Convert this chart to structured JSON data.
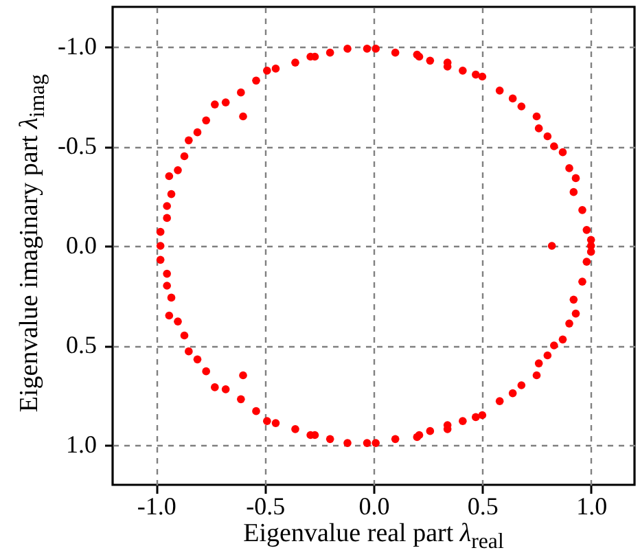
{
  "chart_data": {
    "type": "scatter",
    "xlabel": "Eigenvalue real part λ$_{real}$",
    "ylabel": "Eigenvalue imaginary part λ$_{imag}$",
    "x": [
      0.01,
      -0.03,
      -0.12,
      -0.2,
      -0.27,
      -0.29,
      -0.36,
      -0.45,
      -0.49,
      -0.54,
      -0.61,
      -0.6,
      -0.68,
      -0.73,
      -0.77,
      -0.81,
      -0.85,
      -0.87,
      -0.9,
      -0.94,
      -0.93,
      -0.95,
      -0.95,
      -0.98,
      0.1,
      0.2,
      0.21,
      0.26,
      0.34,
      0.34,
      0.41,
      0.47,
      0.5,
      0.58,
      0.64,
      0.68,
      0.75,
      0.76,
      0.8,
      0.83,
      0.87,
      0.9,
      0.93,
      0.92,
      0.96,
      0.98,
      1.0,
      -0.98,
      0.82,
      1.0,
      0.01,
      -0.03,
      -0.12,
      -0.2,
      -0.27,
      -0.29,
      -0.36,
      -0.45,
      -0.49,
      -0.54,
      -0.61,
      -0.6,
      -0.68,
      -0.73,
      -0.77,
      -0.81,
      -0.85,
      -0.87,
      -0.9,
      -0.94,
      -0.93,
      -0.95,
      -0.95,
      -0.98,
      0.1,
      0.2,
      0.21,
      0.26,
      0.34,
      0.34,
      0.41,
      0.47,
      0.5,
      0.58,
      0.64,
      0.68,
      0.75,
      0.76,
      0.8,
      0.83,
      0.87,
      0.9,
      0.93,
      0.92,
      0.96,
      0.98,
      1.0
    ],
    "series": [
      {
        "color": "#ff0000",
        "values": [
          -0.99,
          -0.99,
          -0.99,
          -0.97,
          -0.95,
          -0.95,
          -0.92,
          -0.89,
          -0.88,
          -0.83,
          -0.77,
          -0.65,
          -0.72,
          -0.71,
          -0.63,
          -0.57,
          -0.53,
          -0.45,
          -0.38,
          -0.35,
          -0.26,
          -0.2,
          -0.14,
          -0.07,
          -0.97,
          -0.96,
          -0.95,
          -0.93,
          -0.92,
          -0.9,
          -0.88,
          -0.86,
          -0.85,
          -0.78,
          -0.74,
          -0.7,
          -0.65,
          -0.59,
          -0.55,
          -0.5,
          -0.47,
          -0.39,
          -0.34,
          -0.27,
          -0.18,
          -0.08,
          -0.03,
          0,
          0,
          0,
          0.99,
          0.99,
          0.99,
          0.97,
          0.95,
          0.95,
          0.92,
          0.89,
          0.88,
          0.83,
          0.77,
          0.65,
          0.72,
          0.71,
          0.63,
          0.57,
          0.53,
          0.45,
          0.38,
          0.35,
          0.26,
          0.2,
          0.14,
          0.07,
          0.97,
          0.96,
          0.95,
          0.93,
          0.92,
          0.9,
          0.88,
          0.86,
          0.85,
          0.78,
          0.74,
          0.7,
          0.65,
          0.59,
          0.55,
          0.5,
          0.47,
          0.39,
          0.34,
          0.27,
          0.18,
          0.08,
          0.03
        ]
      }
    ],
    "xlim": [
      -1.2,
      1.2
    ],
    "ylim": [
      1.2,
      -1.2
    ],
    "xticks": [
      {
        "value": -1,
        "label": "-1.0"
      },
      {
        "value": -0.5,
        "label": "-0.5"
      },
      {
        "value": 0,
        "label": "0.0"
      },
      {
        "value": 0.5,
        "label": "0.5"
      },
      {
        "value": 1,
        "label": "1.0"
      }
    ],
    "yticks": [
      {
        "value": -1,
        "label": "-1.0"
      },
      {
        "value": -0.5,
        "label": "-0.5"
      },
      {
        "value": 0,
        "label": "0.0"
      },
      {
        "value": 0.5,
        "label": "0.5"
      },
      {
        "value": 1,
        "label": "1.0"
      }
    ],
    "grid": true,
    "marker": "circle"
  }
}
